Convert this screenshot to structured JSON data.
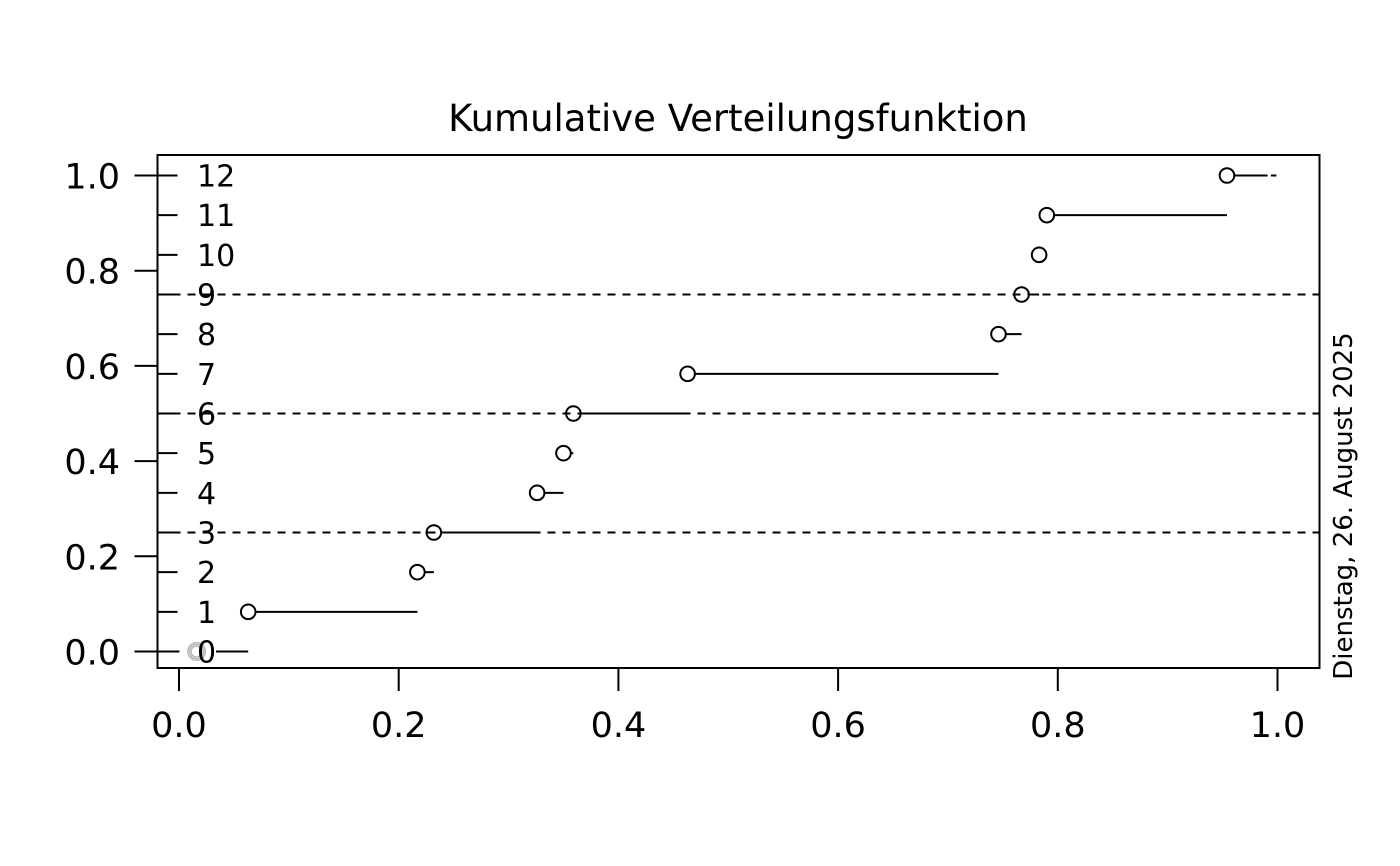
{
  "title": "Kumulative Verteilungsfunktion",
  "date_note": "Dienstag, 26. August 2025",
  "chart_data": {
    "type": "step",
    "title": "Kumulative Verteilungsfunktion",
    "xlabel": "",
    "ylabel": "",
    "points": [
      0.063,
      0.217,
      0.232,
      0.326,
      0.35,
      0.359,
      0.463,
      0.746,
      0.767,
      0.783,
      0.79,
      0.954
    ],
    "n_points": 12,
    "ecdf_levels": [
      0,
      0.0833,
      0.1667,
      0.25,
      0.3333,
      0.4167,
      0.5,
      0.5833,
      0.6667,
      0.75,
      0.8333,
      0.9167,
      1.0
    ],
    "step_labels": [
      "0",
      "1",
      "2",
      "3",
      "4",
      "5",
      "6",
      "7",
      "8",
      "9",
      "10",
      "11",
      "12"
    ],
    "x_tick_values": [
      0.0,
      0.2,
      0.4,
      0.6,
      0.8,
      1.0
    ],
    "x_tick_labels": [
      "0.0",
      "0.2",
      "0.4",
      "0.6",
      "0.8",
      "1.0"
    ],
    "y_tick_values": [
      0.0,
      0.2,
      0.4,
      0.6,
      0.8,
      1.0
    ],
    "y_tick_labels": [
      "0.0",
      "0.2",
      "0.4",
      "0.6",
      "0.8",
      "1.0"
    ],
    "dashed_hlines": [
      0.25,
      0.5,
      0.75
    ],
    "xlim": [
      -0.019,
      1.038
    ],
    "ylim": [
      -0.035,
      1.043
    ],
    "grid": false,
    "legend": false,
    "point_style": "open-circle",
    "tail": {
      "solid_end": 0.991,
      "dash_start": 0.994,
      "dash_end": 0.999
    },
    "ghost_point": {
      "x": 0.016,
      "y": 0
    },
    "colors": {
      "line": "#000000",
      "ghost_rings": "#b9b9b9",
      "background": "#ffffff"
    }
  }
}
